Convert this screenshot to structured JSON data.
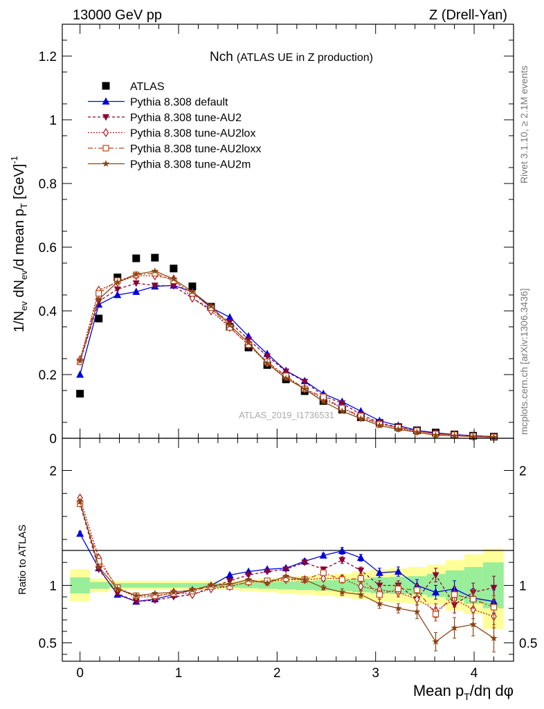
{
  "header": {
    "left": "13000 GeV pp",
    "right": "Z (Drell-Yan)"
  },
  "side_labels": {
    "top": "Rivet 3.1.10, ≥ 2.1M events",
    "bottom": "mcplots.cern.ch [arXiv:1306.3436]"
  },
  "watermark": "ATLAS_2019_I1736531",
  "colors": {
    "atlas": "#000000",
    "default": "#0000dd",
    "au2": "#8b0036",
    "au2lox": "#aa1c1c",
    "au2loxx": "#c04410",
    "au2m": "#8b4513",
    "band_yellow": "#ffff99",
    "band_green": "#99ee99"
  },
  "chart_data": [
    {
      "type": "line",
      "panel": "main",
      "title": "Nch",
      "subtitle": "(ATLAS UE in Z production)",
      "ylabel": "1/N_ev dN_ev/d mean p_T [GeV]^-1",
      "ylabel_parts": {
        "p1": "1/N",
        "s1": "ev",
        "p2": " dN",
        "s2": "ev",
        "p3": "/d mean p",
        "s3": "T",
        "p4": " [GeV]",
        "sup": "-1"
      },
      "xlabel": "",
      "xlim": [
        -0.18,
        4.4
      ],
      "ylim": [
        0,
        1.3
      ],
      "yticks": [
        0,
        0.2,
        0.4,
        0.6,
        0.8,
        1,
        1.2
      ],
      "ytick_labels": [
        "0",
        "0.2",
        "0.4",
        "0.6",
        "0.8",
        "1",
        "1.2"
      ],
      "x": [
        0,
        0.19,
        0.38,
        0.57,
        0.76,
        0.95,
        1.14,
        1.33,
        1.52,
        1.71,
        1.9,
        2.09,
        2.28,
        2.47,
        2.66,
        2.85,
        3.04,
        3.23,
        3.42,
        3.61,
        3.8,
        3.99,
        4.2
      ],
      "series": [
        {
          "name": "ATLAS",
          "key": "atlas",
          "marker": "square",
          "values": [
            0.14,
            0.376,
            0.505,
            0.565,
            0.567,
            0.533,
            0.477,
            0.413,
            0.35,
            0.285,
            0.23,
            0.185,
            0.148,
            0.117,
            0.09,
            0.066,
            0.048,
            0.035,
            0.025,
            0.018,
            0.012,
            0.008,
            0.005
          ]
        },
        {
          "name": "Pythia 8.308 default",
          "key": "default",
          "marker": "triangle-up",
          "dash": "",
          "values": [
            0.2,
            0.42,
            0.45,
            0.46,
            0.477,
            0.48,
            0.46,
            0.41,
            0.38,
            0.32,
            0.265,
            0.212,
            0.18,
            0.14,
            0.115,
            0.085,
            0.055,
            0.04,
            0.025,
            0.017,
            0.012,
            0.008,
            0.005
          ]
        },
        {
          "name": "Pythia 8.308 tune-AU2",
          "key": "au2",
          "marker": "triangle-down",
          "dash": "4,3",
          "values": [
            0.24,
            0.43,
            0.468,
            0.487,
            0.48,
            0.478,
            0.44,
            0.405,
            0.365,
            0.31,
            0.258,
            0.21,
            0.178,
            0.133,
            0.11,
            0.075,
            0.048,
            0.035,
            0.022,
            0.016,
            0.01,
            0.0075,
            0.005
          ]
        },
        {
          "name": "Pythia 8.308 tune-AU2lox",
          "key": "au2lox",
          "marker": "diamond-open",
          "dash": "2,2",
          "values": [
            0.247,
            0.465,
            0.49,
            0.51,
            0.51,
            0.5,
            0.44,
            0.4,
            0.348,
            0.293,
            0.236,
            0.194,
            0.155,
            0.123,
            0.095,
            0.065,
            0.046,
            0.032,
            0.022,
            0.014,
            0.0105,
            0.006,
            0.004
          ]
        },
        {
          "name": "Pythia 8.308 tune-AU2loxx",
          "key": "au2loxx",
          "marker": "square-open",
          "dash": "7,3,2,3",
          "values": [
            0.24,
            0.455,
            0.495,
            0.513,
            0.518,
            0.495,
            0.455,
            0.41,
            0.348,
            0.294,
            0.24,
            0.196,
            0.155,
            0.13,
            0.095,
            0.07,
            0.044,
            0.034,
            0.024,
            0.0135,
            0.011,
            0.007,
            0.004
          ]
        },
        {
          "name": "Pythia 8.308 tune-AU2m",
          "key": "au2m",
          "marker": "star",
          "dash": "",
          "values": [
            0.243,
            0.436,
            0.49,
            0.515,
            0.525,
            0.5,
            0.46,
            0.415,
            0.355,
            0.3,
            0.235,
            0.188,
            0.155,
            0.115,
            0.085,
            0.062,
            0.04,
            0.028,
            0.019,
            0.0095,
            0.0075,
            0.0055,
            0.003
          ]
        }
      ]
    },
    {
      "type": "line",
      "panel": "ratio",
      "ylabel": "Ratio to ATLAS",
      "xlabel": "Mean p_T/dη dφ",
      "xlabel_parts": {
        "p1": "Mean p",
        "s1": "T",
        "p2": "/dη dφ"
      },
      "xlim": [
        -0.18,
        4.4
      ],
      "ylim": [
        0.34,
        2.28
      ],
      "yticks": [
        0.5,
        1,
        2
      ],
      "ytick_labels": [
        "0.5",
        "1",
        "2"
      ],
      "xticks": [
        0,
        1,
        2,
        3,
        4
      ],
      "xtick_labels": [
        "0",
        "1",
        "2",
        "3",
        "4"
      ],
      "bands": {
        "edges": [
          -0.1,
          0.1,
          0.29,
          0.48,
          0.67,
          0.86,
          1.05,
          1.24,
          1.43,
          1.62,
          1.81,
          2.0,
          2.19,
          2.38,
          2.57,
          2.76,
          2.95,
          3.14,
          3.33,
          3.52,
          3.71,
          3.9,
          4.09,
          4.3
        ],
        "yellow": [
          [
            0.86,
            1.14
          ],
          [
            0.94,
            1.06
          ],
          [
            0.96,
            1.04
          ],
          [
            0.96,
            1.04
          ],
          [
            0.96,
            1.04
          ],
          [
            0.96,
            1.04
          ],
          [
            0.96,
            1.04
          ],
          [
            0.96,
            1.04
          ],
          [
            0.96,
            1.04
          ],
          [
            0.95,
            1.05
          ],
          [
            0.94,
            1.06
          ],
          [
            0.93,
            1.07
          ],
          [
            0.92,
            1.08
          ],
          [
            0.91,
            1.09
          ],
          [
            0.9,
            1.1
          ],
          [
            0.88,
            1.12
          ],
          [
            0.86,
            1.14
          ],
          [
            0.85,
            1.15
          ],
          [
            0.84,
            1.16
          ],
          [
            0.83,
            1.18
          ],
          [
            0.78,
            1.22
          ],
          [
            0.75,
            1.27
          ],
          [
            0.62,
            1.32
          ]
        ],
        "green": [
          [
            0.93,
            1.07
          ],
          [
            0.97,
            1.03
          ],
          [
            0.98,
            1.02
          ],
          [
            0.98,
            1.02
          ],
          [
            0.98,
            1.02
          ],
          [
            0.98,
            1.02
          ],
          [
            0.98,
            1.02
          ],
          [
            0.98,
            1.02
          ],
          [
            0.98,
            1.02
          ],
          [
            0.975,
            1.025
          ],
          [
            0.97,
            1.03
          ],
          [
            0.965,
            1.035
          ],
          [
            0.96,
            1.04
          ],
          [
            0.955,
            1.045
          ],
          [
            0.95,
            1.05
          ],
          [
            0.94,
            1.06
          ],
          [
            0.93,
            1.07
          ],
          [
            0.925,
            1.075
          ],
          [
            0.92,
            1.08
          ],
          [
            0.9,
            1.1
          ],
          [
            0.87,
            1.13
          ],
          [
            0.84,
            1.16
          ],
          [
            0.8,
            1.2
          ]
        ]
      },
      "x": [
        0,
        0.19,
        0.38,
        0.57,
        0.76,
        0.95,
        1.14,
        1.33,
        1.52,
        1.71,
        1.9,
        2.09,
        2.28,
        2.47,
        2.66,
        2.85,
        3.04,
        3.23,
        3.42,
        3.61,
        3.8,
        3.99,
        4.2
      ],
      "series": [
        {
          "key": "default",
          "values": [
            1.45,
            1.15,
            0.92,
            0.86,
            0.88,
            0.92,
            0.96,
            1.0,
            1.09,
            1.12,
            1.14,
            1.15,
            1.21,
            1.26,
            1.3,
            1.24,
            1.11,
            1.12,
            1.0,
            0.94,
            0.97,
            0.89,
            0.86
          ],
          "err": [
            0.02,
            0.01,
            0.01,
            0.01,
            0.01,
            0.01,
            0.01,
            0.01,
            0.01,
            0.01,
            0.01,
            0.01,
            0.02,
            0.02,
            0.03,
            0.03,
            0.04,
            0.04,
            0.05,
            0.06,
            0.07,
            0.08,
            0.1
          ]
        },
        {
          "key": "au2",
          "values": [
            1.71,
            1.14,
            0.93,
            0.86,
            0.87,
            0.9,
            0.92,
            0.98,
            1.04,
            1.09,
            1.12,
            1.14,
            1.2,
            1.14,
            1.22,
            1.13,
            1.0,
            1.0,
            0.88,
            1.09,
            0.83,
            0.94,
            0.98
          ],
          "err": [
            0.02,
            0.01,
            0.01,
            0.01,
            0.01,
            0.01,
            0.01,
            0.01,
            0.01,
            0.01,
            0.01,
            0.01,
            0.02,
            0.02,
            0.03,
            0.03,
            0.04,
            0.04,
            0.05,
            0.06,
            0.07,
            0.08,
            0.1
          ]
        },
        {
          "key": "au2lox",
          "values": [
            1.76,
            1.24,
            0.97,
            0.9,
            0.9,
            0.94,
            0.92,
            0.97,
            0.99,
            1.03,
            1.03,
            1.05,
            1.05,
            1.06,
            1.06,
            0.99,
            0.96,
            0.94,
            0.88,
            0.78,
            0.88,
            0.79,
            0.73
          ],
          "err": [
            0.02,
            0.01,
            0.01,
            0.01,
            0.01,
            0.01,
            0.01,
            0.01,
            0.01,
            0.01,
            0.01,
            0.01,
            0.02,
            0.02,
            0.03,
            0.03,
            0.04,
            0.04,
            0.05,
            0.06,
            0.07,
            0.08,
            0.1
          ]
        },
        {
          "key": "au2loxx",
          "values": [
            1.71,
            1.21,
            0.98,
            0.91,
            0.91,
            0.93,
            0.95,
            0.99,
            0.99,
            1.03,
            1.04,
            1.06,
            1.05,
            1.11,
            1.05,
            1.06,
            0.92,
            0.97,
            0.96,
            0.75,
            0.92,
            0.88,
            0.81
          ],
          "err": [
            0.02,
            0.01,
            0.01,
            0.01,
            0.01,
            0.01,
            0.01,
            0.01,
            0.01,
            0.01,
            0.01,
            0.01,
            0.02,
            0.02,
            0.03,
            0.03,
            0.04,
            0.04,
            0.05,
            0.06,
            0.07,
            0.08,
            0.1
          ]
        },
        {
          "key": "au2m",
          "values": [
            1.73,
            1.16,
            0.97,
            0.91,
            0.93,
            0.94,
            0.96,
            1.0,
            1.01,
            1.05,
            1.02,
            1.08,
            1.05,
            0.98,
            0.94,
            0.92,
            0.84,
            0.8,
            0.77,
            0.51,
            0.63,
            0.66,
            0.54
          ],
          "err": [
            0.02,
            0.01,
            0.01,
            0.01,
            0.01,
            0.01,
            0.01,
            0.01,
            0.01,
            0.01,
            0.01,
            0.01,
            0.02,
            0.02,
            0.03,
            0.03,
            0.04,
            0.04,
            0.06,
            0.08,
            0.09,
            0.1,
            0.12
          ]
        }
      ]
    }
  ]
}
